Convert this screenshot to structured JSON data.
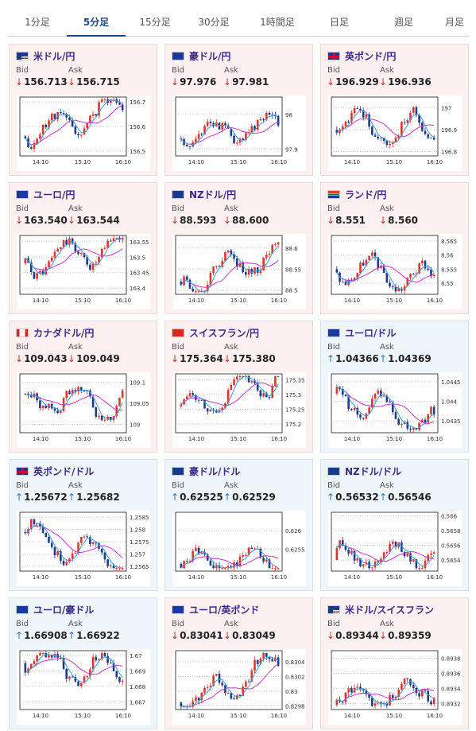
{
  "tabs": [
    {
      "label": "1分足",
      "active": false
    },
    {
      "label": "5分足",
      "active": true
    },
    {
      "label": "15分足",
      "active": false
    },
    {
      "label": "30分足",
      "active": false
    },
    {
      "label": "1時間足",
      "active": false
    },
    {
      "label": "日足",
      "active": false
    },
    {
      "label": "週足",
      "active": false
    },
    {
      "label": "月足",
      "active": false
    }
  ],
  "labels": {
    "bid": "Bid",
    "ask": "Ask"
  },
  "colors": {
    "candle_up": "#e4332d",
    "candle_down": "#1e3a8a",
    "ma_slow": "#cc33cc",
    "ma_fast": "#3aa0d8",
    "arrow_down": "#d0302a",
    "arrow_up": "#2a7ab5"
  },
  "cards": [
    {
      "title": "米ドル/円",
      "flag": "us-flag",
      "direction": "down",
      "bid": "156.713",
      "ask": "156.715",
      "chart_data": {
        "type": "candlestick",
        "x_ticks": [
          "14:10",
          "15:10",
          "16:10"
        ],
        "y_ticks": [
          "156.7",
          "156.6",
          "156.5"
        ],
        "ylim": [
          156.48,
          156.72
        ],
        "seed": 11,
        "start": 156.56,
        "end": 156.69
      }
    },
    {
      "title": "豪ドル/円",
      "flag": "au-flag",
      "direction": "down",
      "bid": "97.976",
      "ask": "97.981",
      "chart_data": {
        "type": "candlestick",
        "x_ticks": [
          "14:10",
          "15:10",
          "16:10"
        ],
        "y_ticks": [
          "98",
          "97.9"
        ],
        "ylim": [
          97.88,
          98.05
        ],
        "seed": 23,
        "start": 97.93,
        "end": 97.97
      }
    },
    {
      "title": "英ポンド/円",
      "flag": "gb-flag",
      "direction": "down",
      "bid": "196.929",
      "ask": "196.936",
      "chart_data": {
        "type": "candlestick",
        "x_ticks": [
          "14:10",
          "15:10",
          "16:10"
        ],
        "y_ticks": [
          "197",
          "196.9",
          "196.8"
        ],
        "ylim": [
          196.78,
          197.05
        ],
        "seed": 37,
        "start": 196.9,
        "end": 196.92
      }
    },
    {
      "title": "ユーロ/円",
      "flag": "eu-flag",
      "direction": "down",
      "bid": "163.540",
      "ask": "163.544",
      "chart_data": {
        "type": "candlestick",
        "x_ticks": [
          "14:10",
          "15:10",
          "16:10"
        ],
        "y_ticks": [
          "163.55",
          "163.5",
          "163.45",
          "163.4"
        ],
        "ylim": [
          163.38,
          163.57
        ],
        "seed": 41,
        "start": 163.48,
        "end": 163.53
      }
    },
    {
      "title": "NZドル/円",
      "flag": "nz-flag",
      "direction": "down",
      "bid": "88.593",
      "ask": "88.600",
      "chart_data": {
        "type": "candlestick",
        "x_ticks": [
          "14:10",
          "15:10",
          "16:10"
        ],
        "y_ticks": [
          "88.6",
          "88.55",
          "88.5"
        ],
        "ylim": [
          88.49,
          88.63
        ],
        "seed": 53,
        "start": 88.52,
        "end": 88.59
      }
    },
    {
      "title": "ランド/円",
      "flag": "za-flag",
      "direction": "down",
      "bid": "8.551",
      "ask": "8.560",
      "chart_data": {
        "type": "candlestick",
        "x_ticks": [
          "14:10",
          "15:10",
          "16:10"
        ],
        "y_ticks": [
          "8.565",
          "8.56",
          "8.555",
          "8.55"
        ],
        "ylim": [
          8.546,
          8.567
        ],
        "seed": 67,
        "start": 8.555,
        "end": 8.551
      }
    },
    {
      "title": "カナダドル/円",
      "flag": "ca-flag",
      "direction": "down",
      "bid": "109.043",
      "ask": "109.049",
      "chart_data": {
        "type": "candlestick",
        "x_ticks": [
          "14:10",
          "15:10",
          "16:10"
        ],
        "y_ticks": [
          "109.1",
          "109.05",
          "109"
        ],
        "ylim": [
          108.98,
          109.12
        ],
        "seed": 71,
        "start": 109.07,
        "end": 109.04
      }
    },
    {
      "title": "スイスフラン/円",
      "flag": "ch-flag",
      "direction": "down",
      "bid": "175.364",
      "ask": "175.380",
      "chart_data": {
        "type": "candlestick",
        "x_ticks": [
          "14:10",
          "15:10",
          "16:10"
        ],
        "y_ticks": [
          "175.35",
          "175.3",
          "175.25",
          "175.2"
        ],
        "ylim": [
          175.17,
          175.37
        ],
        "seed": 83,
        "start": 175.26,
        "end": 175.36
      }
    },
    {
      "title": "ユーロ/ドル",
      "flag": "eu-flag",
      "direction": "up",
      "bid": "1.04366",
      "ask": "1.04369",
      "chart_data": {
        "type": "candlestick",
        "x_ticks": [
          "14:10",
          "15:10",
          "16:10"
        ],
        "y_ticks": [
          "1.0445",
          "1.044",
          "1.0435"
        ],
        "ylim": [
          1.0432,
          1.0447
        ],
        "seed": 97,
        "start": 1.0442,
        "end": 1.0434
      }
    },
    {
      "title": "英ポンド/ドル",
      "flag": "gb-flag",
      "direction": "up",
      "bid": "1.25672",
      "ask": "1.25682",
      "chart_data": {
        "type": "candlestick",
        "x_ticks": [
          "14:10",
          "15:10",
          "16:10"
        ],
        "y_ticks": [
          "1.2585",
          "1.258",
          "1.2575",
          "1.257",
          "1.2565"
        ],
        "ylim": [
          1.2563,
          1.2587
        ],
        "seed": 101,
        "start": 1.2579,
        "end": 1.2566
      }
    },
    {
      "title": "豪ドル/ドル",
      "flag": "au-flag",
      "direction": "up",
      "bid": "0.62525",
      "ask": "0.62529",
      "chart_data": {
        "type": "candlestick",
        "x_ticks": [
          "14:10",
          "15:10",
          "16:10"
        ],
        "y_ticks": [
          "0.626",
          "0.6255"
        ],
        "ylim": [
          0.6249,
          0.6265
        ],
        "seed": 113,
        "start": 0.6251,
        "end": 0.6252
      }
    },
    {
      "title": "NZドル/ドル",
      "flag": "nz-flag",
      "direction": "up",
      "bid": "0.56532",
      "ask": "0.56546",
      "chart_data": {
        "type": "candlestick",
        "x_ticks": [
          "14:10",
          "15:10",
          "16:10"
        ],
        "y_ticks": [
          "0.566",
          "0.5658",
          "0.5656",
          "0.5654"
        ],
        "ylim": [
          0.56525,
          0.56605
        ],
        "seed": 127,
        "start": 0.5654,
        "end": 0.5655
      }
    },
    {
      "title": "ユーロ/豪ドル",
      "flag": "eu-flag",
      "direction": "up",
      "bid": "1.66908",
      "ask": "1.66922",
      "chart_data": {
        "type": "candlestick",
        "x_ticks": [
          "14:10",
          "15:10",
          "16:10"
        ],
        "y_ticks": [
          "1.67",
          "1.669",
          "1.668",
          "1.667"
        ],
        "ylim": [
          1.6665,
          1.6703
        ],
        "seed": 131,
        "start": 1.6695,
        "end": 1.6691
      }
    },
    {
      "title": "ユーロ/英ポンド",
      "flag": "eu-flag",
      "direction": "down",
      "bid": "0.83041",
      "ask": "0.83049",
      "chart_data": {
        "type": "candlestick",
        "x_ticks": [
          "14:10",
          "15:10",
          "16:10"
        ],
        "y_ticks": [
          "0.8304",
          "0.8302",
          "0.83",
          "0.8298"
        ],
        "ylim": [
          0.82975,
          0.83055
        ],
        "seed": 149,
        "start": 0.82985,
        "end": 0.8304
      }
    },
    {
      "title": "米ドル/スイスフラン",
      "flag": "us-flag",
      "direction": "down",
      "bid": "0.89344",
      "ask": "0.89359",
      "chart_data": {
        "type": "candlestick",
        "x_ticks": [
          "14:10",
          "15:10",
          "16:10"
        ],
        "y_ticks": [
          "0.8938",
          "0.8936",
          "0.8934",
          "0.8932"
        ],
        "ylim": [
          0.89312,
          0.8939
        ],
        "seed": 157,
        "start": 0.89318,
        "end": 0.89345
      }
    }
  ]
}
